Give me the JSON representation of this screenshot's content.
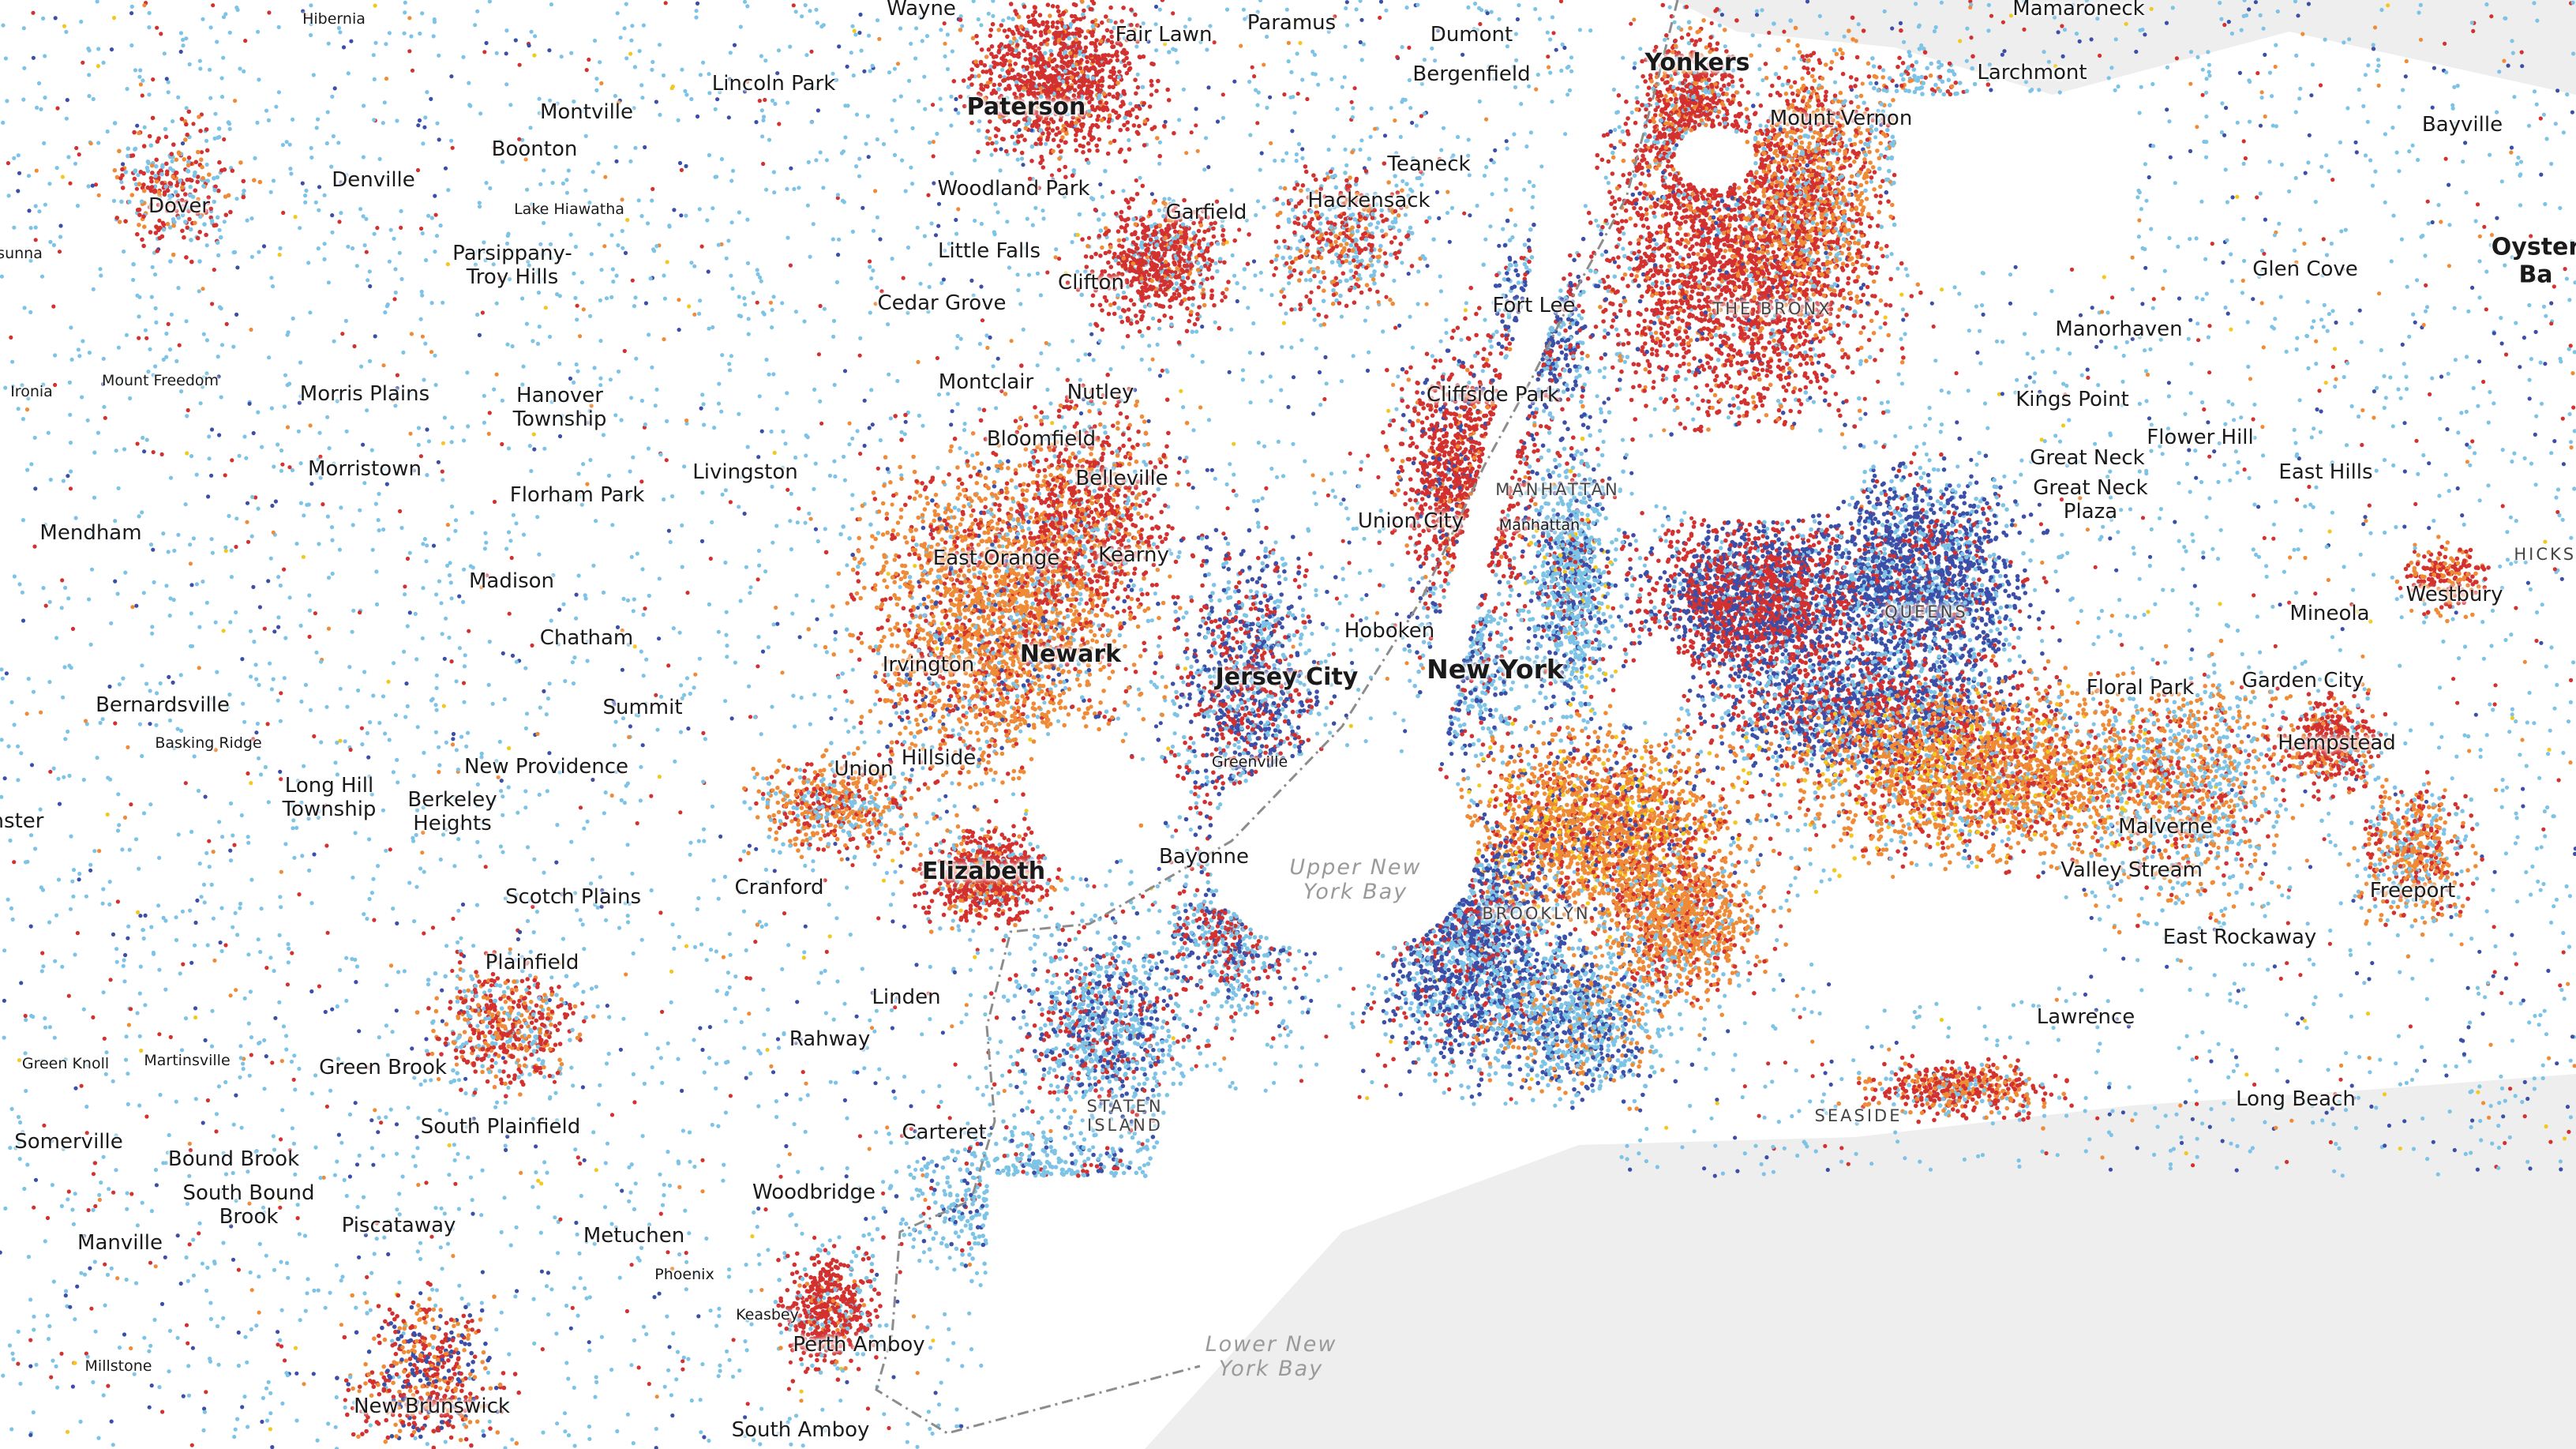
{
  "map": {
    "colors": {
      "background": "#ffffff",
      "water": "#ffffff",
      "land_gray": "#eeeeee",
      "boundary": "#8c8c8c",
      "dot_light_blue": "#7cc3e6",
      "dot_dark_blue": "#3b4fa8",
      "dot_red": "#d3312f",
      "dot_orange": "#ef8b36",
      "dot_yellow": "#f2c81e",
      "dot_purple": "#8e4a8f"
    },
    "labels": {
      "wayne": "Wayne",
      "paramus": "Paramus",
      "hibernia": "Hibernia",
      "fair_lawn": "Fair Lawn",
      "dumont": "Dumont",
      "mamaroneck": "Mamaroneck",
      "yonkers": "Yonkers",
      "larchmont": "Larchmont",
      "lincoln_park": "Lincoln Park",
      "paterson": "Paterson",
      "bergenfield": "Bergenfield",
      "montville": "Montville",
      "mount_vernon": "Mount Vernon",
      "bayville": "Bayville",
      "boonton": "Boonton",
      "teaneck": "Teaneck",
      "denville": "Denville",
      "woodland_park": "Woodland Park",
      "hackensack": "Hackensack",
      "dover": "Dover",
      "garfield": "Garfield",
      "lake_hiawatha": "Lake Hiawatha",
      "sunna": "sunna",
      "little_falls": "Little Falls",
      "parsippany": "Parsippany-\nTroy Hills",
      "glen_cove": "Glen Cove",
      "oyster_bay": "Oyster Ba",
      "clifton": "Clifton",
      "the_bronx": "THE BRONX",
      "cedar_grove": "Cedar Grove",
      "fort_lee": "Fort Lee",
      "manorhaven": "Manorhaven",
      "ironia": "Ironia",
      "mount_freedom": "Mount Freedom",
      "montclair": "Montclair",
      "nutley": "Nutley",
      "morris_plains": "Morris Plains",
      "hanover_township": "Hanover\nTownship",
      "cliffside_park": "Cliffside Park",
      "kings_point": "Kings Point",
      "bloomfield": "Bloomfield",
      "morristown": "Morristown",
      "great_neck": "Great Neck",
      "flower_hill": "Flower Hill",
      "great_neck_plaza": "Great Neck\nPlaza",
      "east_hills": "East Hills",
      "livingston": "Livingston",
      "belleville": "Belleville",
      "manhattan": "MANHATTAN",
      "florham_park": "Florham Park",
      "hicksville": "HICKSVI",
      "mendham": "Mendham",
      "union_city": "Union City",
      "manhattan_small": "Manhattan",
      "east_orange": "East Orange",
      "kearny": "Kearny",
      "madison": "Madison",
      "mineola": "Mineola",
      "westbury": "Westbury",
      "queens": "QUEENS",
      "chatham": "Chatham",
      "hoboken": "Hoboken",
      "newark": "Newark",
      "new_york": "New York",
      "irvington": "Irvington",
      "jersey_city": "Jersey City",
      "floral_park": "Floral Park",
      "garden_city": "Garden City",
      "bernardsville": "Bernardsville",
      "summit": "Summit",
      "basking_ridge": "Basking Ridge",
      "hempstead": "Hempstead",
      "hillside": "Hillside",
      "greenville": "Greenville",
      "new_providence": "New Providence",
      "union": "Union",
      "long_hill_township": "Long Hill\nTownship",
      "berkeley_heights": "Berkeley\nHeights",
      "nster": "nster",
      "malverne": "Malverne",
      "bayonne": "Bayonne",
      "elizabeth": "Elizabeth",
      "upper_new_york_bay": "Upper New\nYork Bay",
      "valley_stream": "Valley Stream",
      "cranford": "Cranford",
      "freeport": "Freeport",
      "scotch_plains": "Scotch Plains",
      "brooklyn": "BROOKLYN",
      "east_rockaway": "East Rockaway",
      "plainfield": "Plainfield",
      "linden": "Linden",
      "lawrence": "Lawrence",
      "rahway": "Rahway",
      "green_knoll": "Green Knoll",
      "martinsville": "Martinsville",
      "green_brook": "Green Brook",
      "staten_island": "STATEN\nISLAND",
      "long_beach": "Long Beach",
      "seaside": "SEASIDE",
      "south_plainfield": "South Plainfield",
      "carteret": "Carteret",
      "somerville": "Somerville",
      "bound_brook": "Bound Brook",
      "south_bound_brook": "South Bound\nBrook",
      "woodbridge": "Woodbridge",
      "piscataway": "Piscataway",
      "metuchen": "Metuchen",
      "manville": "Manville",
      "phoenix": "Phoenix",
      "keasbey": "Keasbey",
      "lower_new_york_bay": "Lower New\nYork Bay",
      "perth_amboy": "Perth Amboy",
      "millstone": "Millstone",
      "new_brunswick": "New Brunswick",
      "south_amboy": "South Amboy"
    }
  }
}
